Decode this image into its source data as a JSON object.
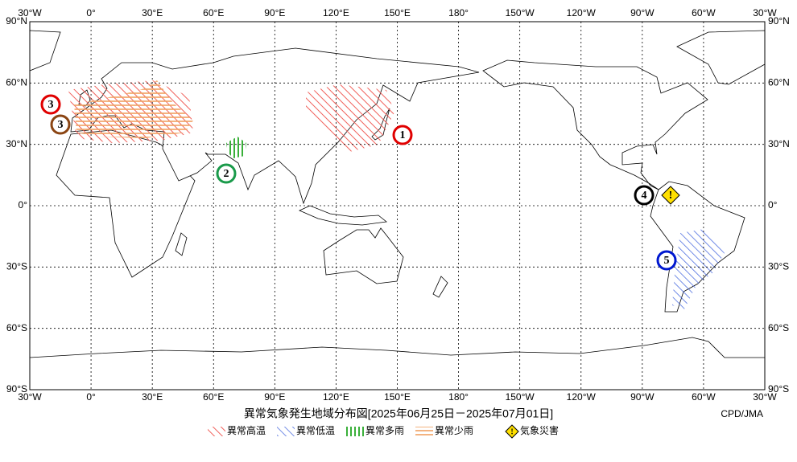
{
  "map": {
    "lon_labels": [
      "30°W",
      "0°",
      "30°E",
      "60°E",
      "90°E",
      "120°E",
      "150°E",
      "180°",
      "150°W",
      "120°W",
      "90°W",
      "60°W",
      "30°W"
    ],
    "lat_labels": [
      "90°N",
      "60°N",
      "30°N",
      "0°",
      "30°S",
      "60°S",
      "90°S"
    ],
    "title": "異常気象発生地域分布図[2025年06月25日－2025年07月01日]",
    "credit": "CPD/JMA",
    "legend": [
      "異常高温",
      "異常低温",
      "異常多雨",
      "異常少雨",
      "気象災害"
    ],
    "markers": [
      "1",
      "2",
      "3",
      "3",
      "4",
      "5",
      "!"
    ]
  }
}
